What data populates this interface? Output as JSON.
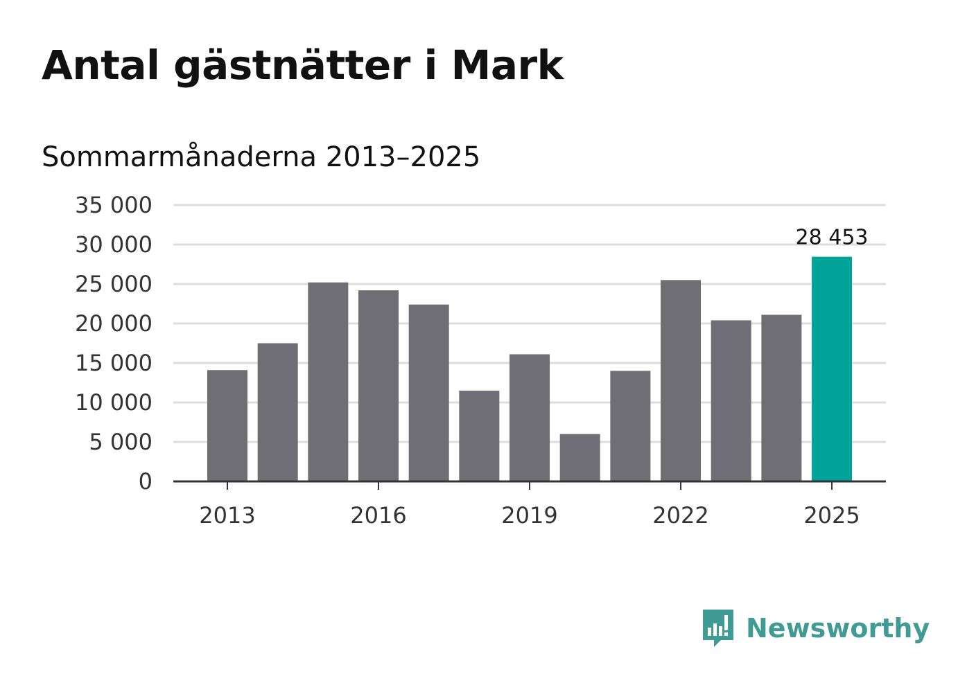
{
  "header": {
    "title": "Antal gästnätter i Mark",
    "subtitle": "Sommarmånaderna 2013–2025"
  },
  "brand": {
    "name": "Newsworthy",
    "icon": "newsworthy-logo-icon",
    "color": "#3f9b94"
  },
  "colors": {
    "bar": "#6f6e74",
    "highlight": "#00a398",
    "grid": "#dddddd",
    "axis": "#333333"
  },
  "chart_data": {
    "type": "bar",
    "title": "Antal gästnätter i Mark",
    "subtitle": "Sommarmånaderna 2013–2025",
    "categories": [
      2013,
      2014,
      2015,
      2016,
      2017,
      2018,
      2019,
      2020,
      2021,
      2022,
      2023,
      2024,
      2025
    ],
    "values": [
      14100,
      17500,
      25200,
      24200,
      22400,
      11500,
      16100,
      6000,
      14000,
      25500,
      20400,
      21100,
      28453
    ],
    "highlight_index": 12,
    "data_labels": [
      {
        "index": 12,
        "text": "28 453"
      }
    ],
    "ylim": [
      0,
      35000
    ],
    "yticks": [
      "0",
      "5 000",
      "10 000",
      "15 000",
      "20 000",
      "25 000",
      "30 000",
      "35 000"
    ],
    "xtick_labels": [
      "2013",
      "2016",
      "2019",
      "2022",
      "2025"
    ],
    "xtick_indices": [
      0,
      3,
      6,
      9,
      12
    ],
    "grid": true,
    "legend": "none"
  }
}
